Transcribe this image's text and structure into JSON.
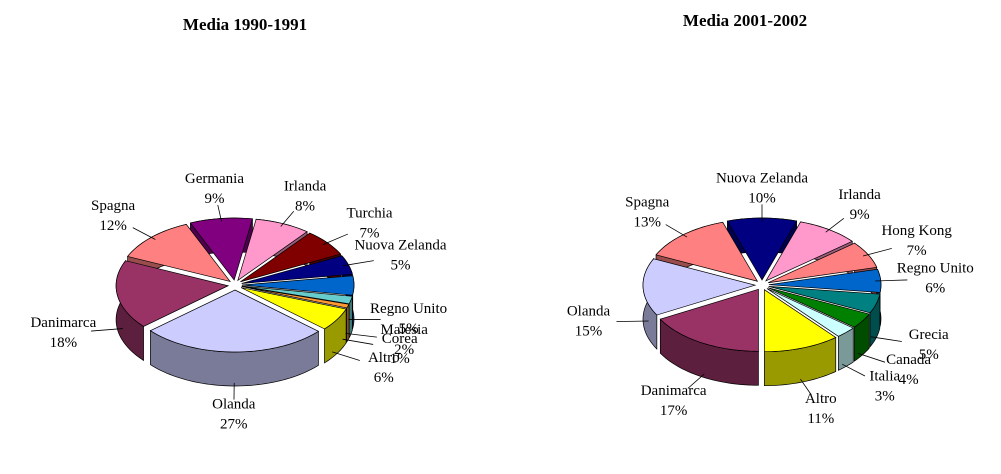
{
  "chart_data": [
    {
      "type": "pie",
      "title": "Media 1990-1991",
      "categories": [
        "Germania",
        "Irlanda",
        "Turchia",
        "Nuova Zelanda",
        "Regno Unito",
        "Malesia",
        "Corea",
        "Altro",
        "Olanda",
        "Danimarca",
        "Spagna"
      ],
      "values": [
        9,
        8,
        7,
        5,
        5,
        2,
        1,
        6,
        27,
        18,
        12
      ],
      "value_labels": [
        "9%",
        "8%",
        "7%",
        "5%",
        "5%",
        "2%",
        "1%",
        "6%",
        "27%",
        "18%",
        "12%"
      ],
      "colors": [
        "#800080",
        "#ff99cc",
        "#800000",
        "#000080",
        "#0066cc",
        "#66cccc",
        "#ff9933",
        "#ffff00",
        "#ccccff",
        "#993366",
        "#ff8080"
      ]
    },
    {
      "type": "pie",
      "title": "Media 2001-2002",
      "categories": [
        "Nuova Zelanda",
        "Irlanda",
        "Hong Kong",
        "Regno Unito",
        "Grecia",
        "Canada",
        "Italia",
        "Altro",
        "Danimarca",
        "Olanda",
        "Spagna"
      ],
      "values": [
        10,
        9,
        7,
        6,
        5,
        4,
        3,
        11,
        17,
        15,
        13
      ],
      "value_labels": [
        "10%",
        "9%",
        "7%",
        "6%",
        "5%",
        "4%",
        "3%",
        "11%",
        "17%",
        "15%",
        "13%"
      ],
      "colors": [
        "#000080",
        "#ff99cc",
        "#ff8080",
        "#0066cc",
        "#008080",
        "#008000",
        "#ccffff",
        "#ffff00",
        "#993366",
        "#ccccff",
        "#ff8080"
      ]
    }
  ]
}
